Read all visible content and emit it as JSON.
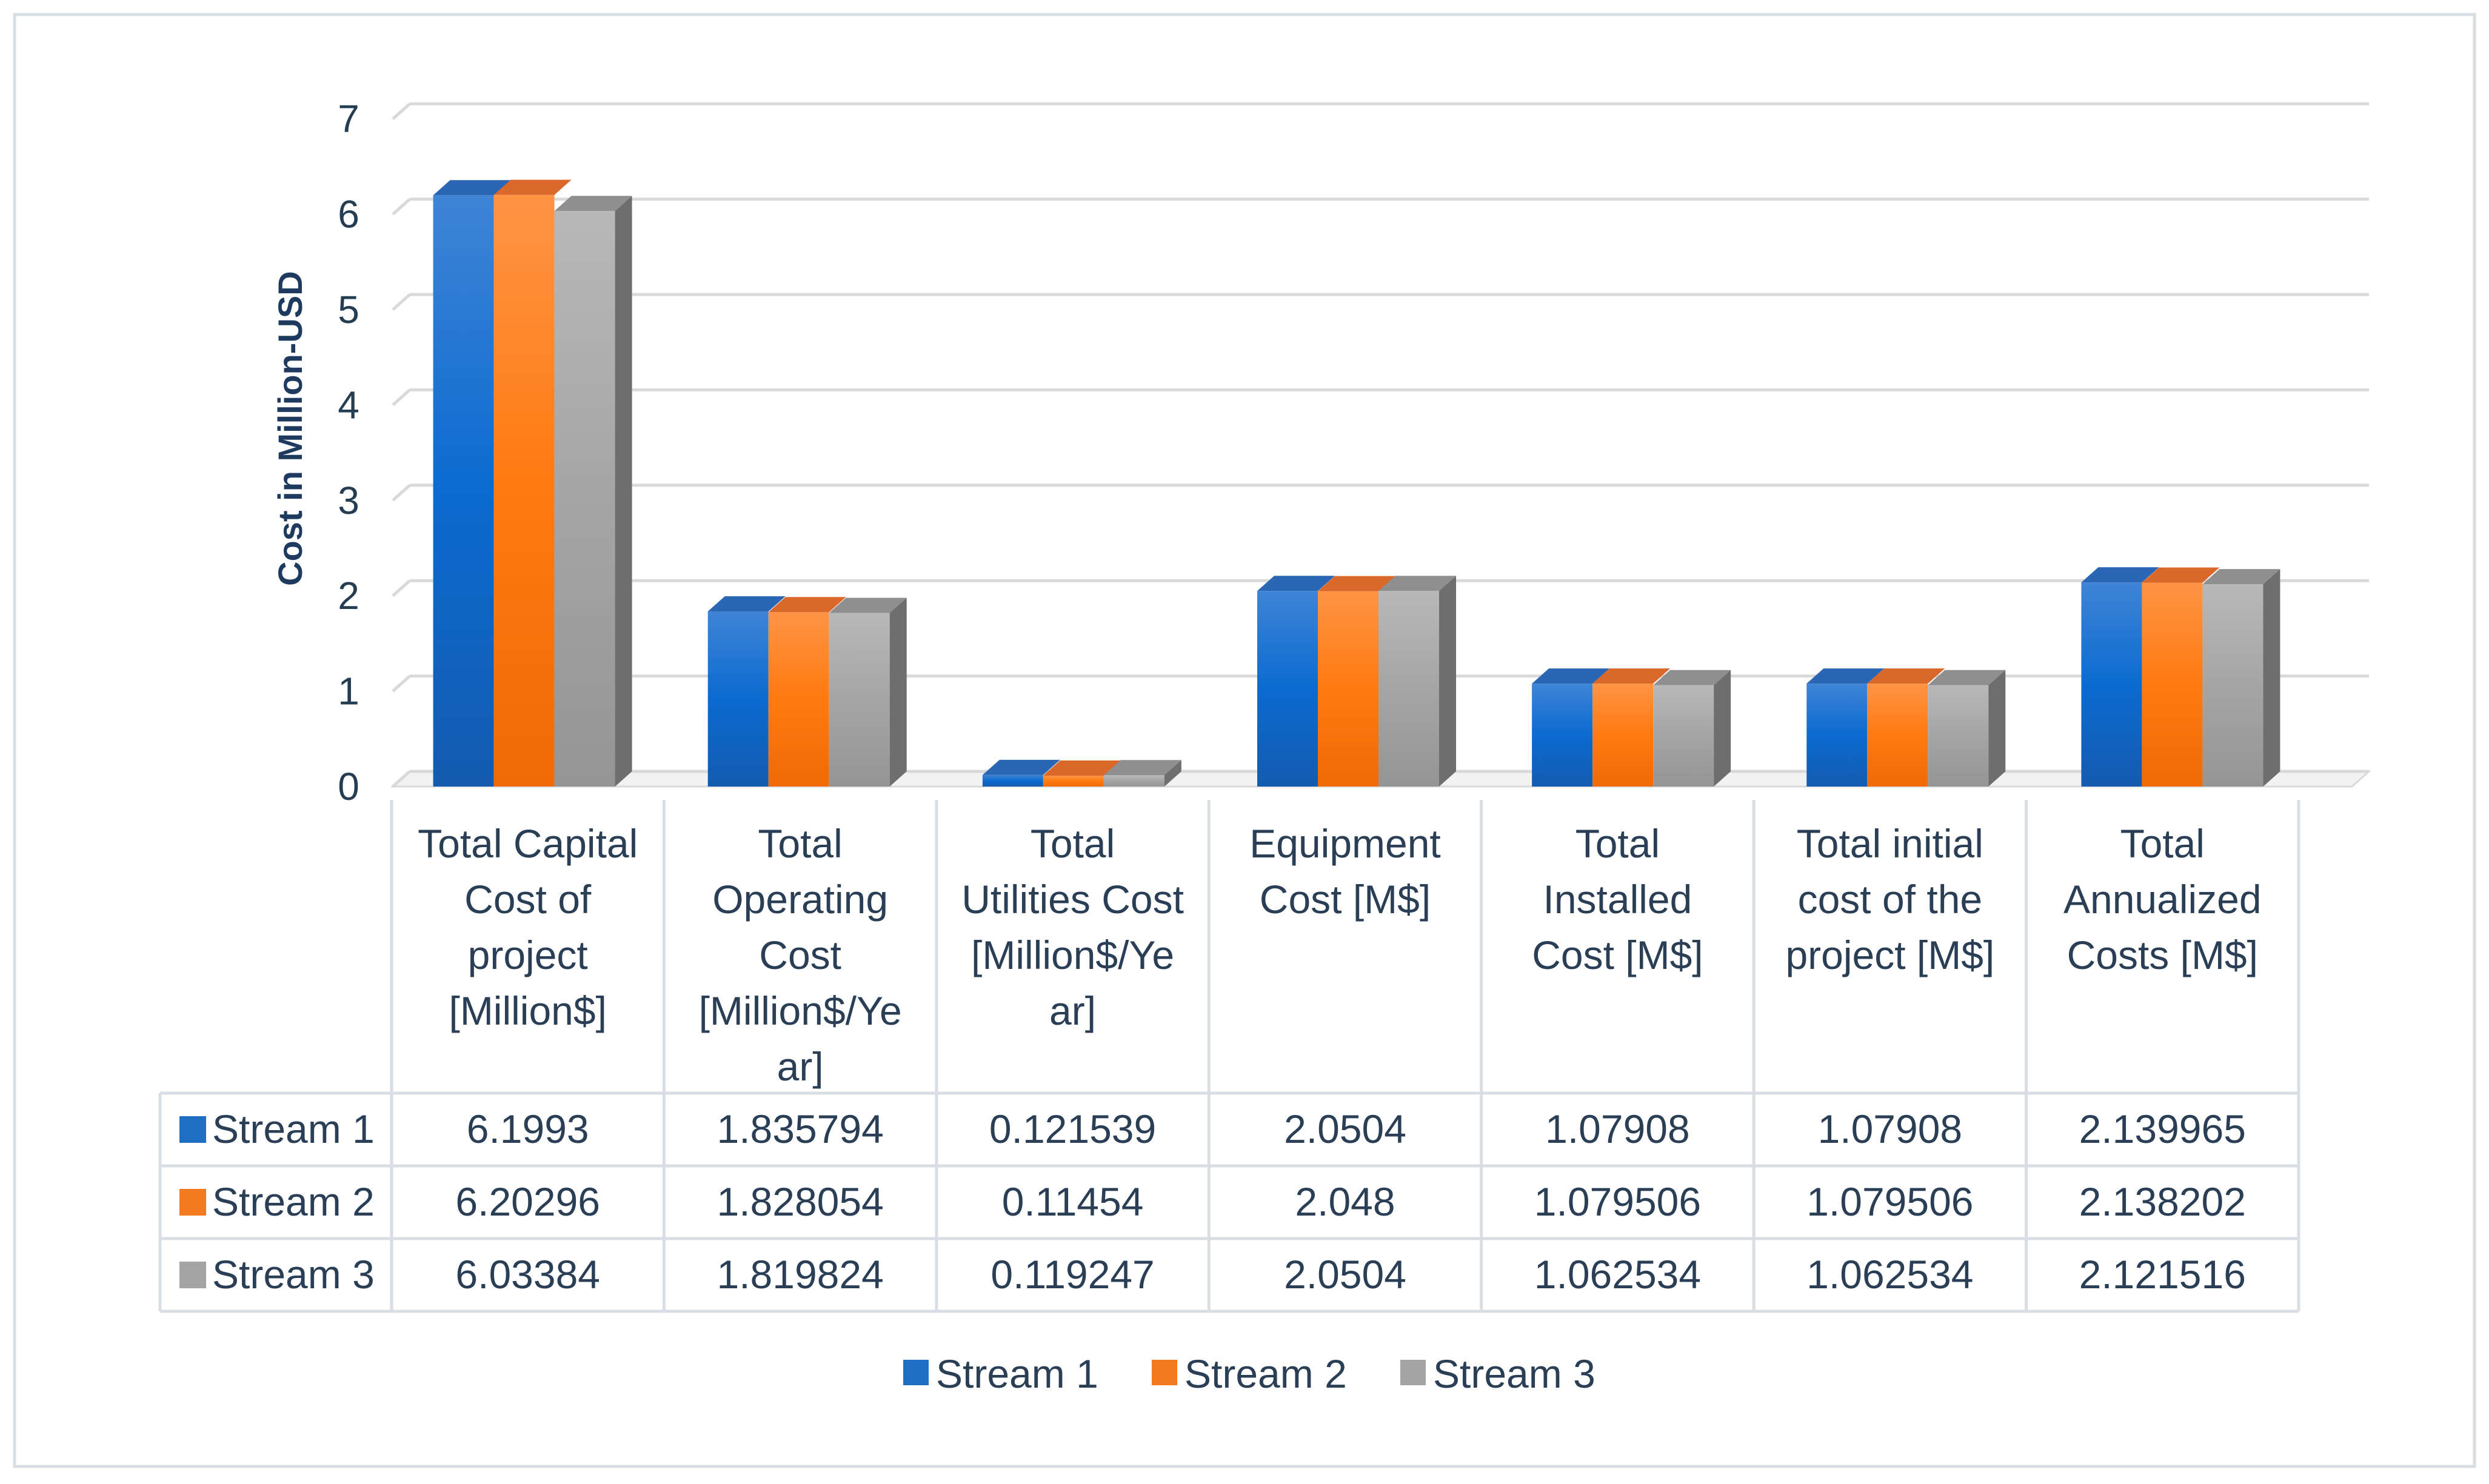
{
  "chart_data": {
    "type": "bar",
    "title": "",
    "xlabel": "",
    "ylabel": "Cost in Million-USD",
    "ylim": [
      0,
      7
    ],
    "yticks": [
      0,
      1,
      2,
      3,
      4,
      5,
      6,
      7
    ],
    "grid": true,
    "legend_position": "bottom",
    "categories": [
      [
        "Total Capital",
        "Cost of",
        "project",
        "[Million$]"
      ],
      [
        "Total",
        "Operating",
        "Cost",
        "[Million$/Ye",
        "ar]"
      ],
      [
        "Total",
        "Utilities Cost",
        "[Million$/Ye",
        "ar]"
      ],
      [
        "Equipment",
        "Cost [M$]"
      ],
      [
        "Total",
        "Installed",
        "Cost [M$]"
      ],
      [
        "Total initial",
        "cost of the",
        "project [M$]"
      ],
      [
        "Total",
        "Annualized",
        "Costs [M$]"
      ]
    ],
    "series": [
      {
        "name": "Stream 1",
        "color": "#1f6fc5",
        "values": [
          6.1993,
          1.835794,
          0.121539,
          2.0504,
          1.07908,
          1.07908,
          2.139965
        ],
        "labels": [
          "6.1993",
          "1.835794",
          "0.121539",
          "2.0504",
          "1.07908",
          "1.07908",
          "2.139965"
        ]
      },
      {
        "name": "Stream 2",
        "color": "#f47a20",
        "values": [
          6.20296,
          1.828054,
          0.11454,
          2.048,
          1.079506,
          1.079506,
          2.138202
        ],
        "labels": [
          "6.20296",
          "1.828054",
          "0.11454",
          "2.048",
          "1.079506",
          "1.079506",
          "2.138202"
        ]
      },
      {
        "name": "Stream 3",
        "color": "#a3a3a3",
        "values": [
          6.03384,
          1.819824,
          0.119247,
          2.0504,
          1.062534,
          1.062534,
          2.121516
        ],
        "labels": [
          "6.03384",
          "1.819824",
          "0.119247",
          "2.0504",
          "1.062534",
          "1.062534",
          "2.121516"
        ]
      }
    ]
  }
}
